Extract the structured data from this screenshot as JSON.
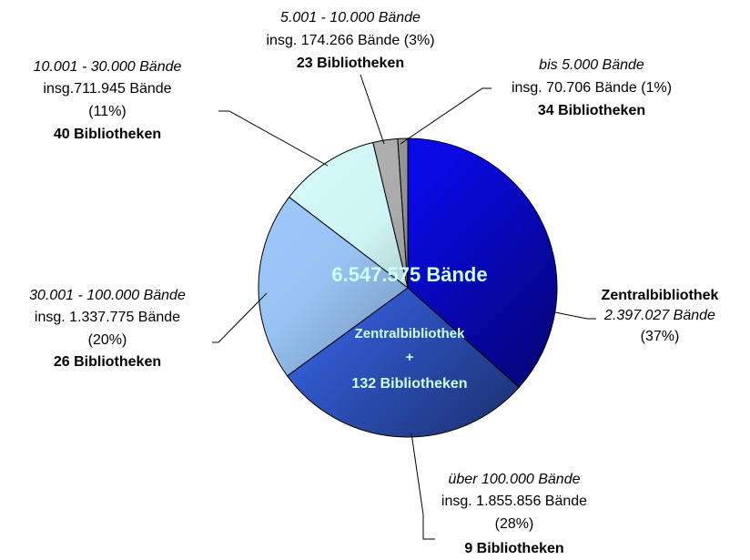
{
  "chart_data": {
    "type": "pie",
    "categories": [
      "Zentralbibliothek",
      "über 100.000 Bände",
      "30.001 - 100.000 Bände",
      "10.001 - 30.000 Bände",
      "5.001 - 10.000 Bände",
      "bis 5.000 Bände"
    ],
    "values": [
      2397027,
      1855856,
      1337775,
      711945,
      174266,
      70706
    ],
    "value_labels": [
      "2.397.027 Bände",
      "insg. 1.855.856 Bände",
      "insg. 1.337.775 Bände",
      "insg.711.945 Bände",
      "insg. 174.266 Bände",
      "insg. 70.706 Bände"
    ],
    "percent_labels": [
      "(37%)",
      "(28%)",
      "(20%)",
      "(11%)",
      "(3%)",
      "(1%)"
    ],
    "library_labels": [
      null,
      "9 Bibliotheken",
      "26 Bibliotheken",
      "40 Bibliotheken",
      "23 Bibliotheken",
      "34 Bibliotheken"
    ],
    "colors": [
      "#0a0af0",
      "#3a68f0",
      "#a0ccff",
      "#d8ffff",
      "#b4b4b4",
      "#9a9a9a"
    ],
    "center_labels": [
      "6.547.575 Bände",
      "Zentralbibliothek",
      "+",
      "132 Bibliotheken"
    ]
  }
}
